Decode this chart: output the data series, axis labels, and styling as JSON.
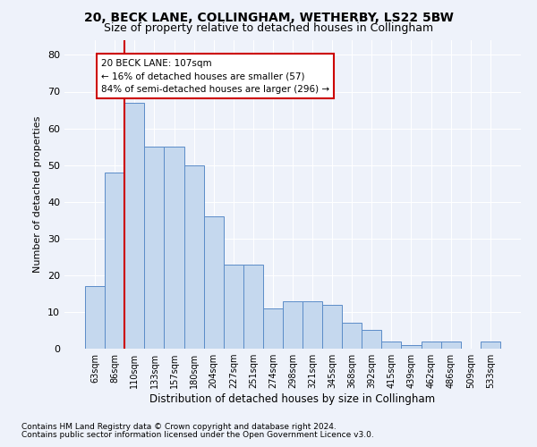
{
  "title1": "20, BECK LANE, COLLINGHAM, WETHERBY, LS22 5BW",
  "title2": "Size of property relative to detached houses in Collingham",
  "xlabel": "Distribution of detached houses by size in Collingham",
  "ylabel": "Number of detached properties",
  "categories": [
    "63sqm",
    "86sqm",
    "110sqm",
    "133sqm",
    "157sqm",
    "180sqm",
    "204sqm",
    "227sqm",
    "251sqm",
    "274sqm",
    "298sqm",
    "321sqm",
    "345sqm",
    "368sqm",
    "392sqm",
    "415sqm",
    "439sqm",
    "462sqm",
    "486sqm",
    "509sqm",
    "533sqm"
  ],
  "values": [
    17,
    48,
    67,
    55,
    55,
    50,
    36,
    23,
    23,
    11,
    13,
    13,
    12,
    7,
    5,
    2,
    1,
    2,
    2,
    0,
    2
  ],
  "bar_color": "#c5d8ee",
  "bar_edge_color": "#5b8cc8",
  "vline_color": "#cc0000",
  "annotation_text": "20 BECK LANE: 107sqm\n← 16% of detached houses are smaller (57)\n84% of semi-detached houses are larger (296) →",
  "annotation_box_color": "#ffffff",
  "annotation_box_edge_color": "#cc0000",
  "ylim": [
    0,
    84
  ],
  "yticks": [
    0,
    10,
    20,
    30,
    40,
    50,
    60,
    70,
    80
  ],
  "footnote1": "Contains HM Land Registry data © Crown copyright and database right 2024.",
  "footnote2": "Contains public sector information licensed under the Open Government Licence v3.0.",
  "background_color": "#eef2fa",
  "plot_bg_color": "#eef2fa",
  "grid_color": "#ffffff",
  "title1_fontsize": 10,
  "title2_fontsize": 9,
  "footnote_fontsize": 6.5,
  "ylabel_fontsize": 8,
  "xlabel_fontsize": 8.5
}
